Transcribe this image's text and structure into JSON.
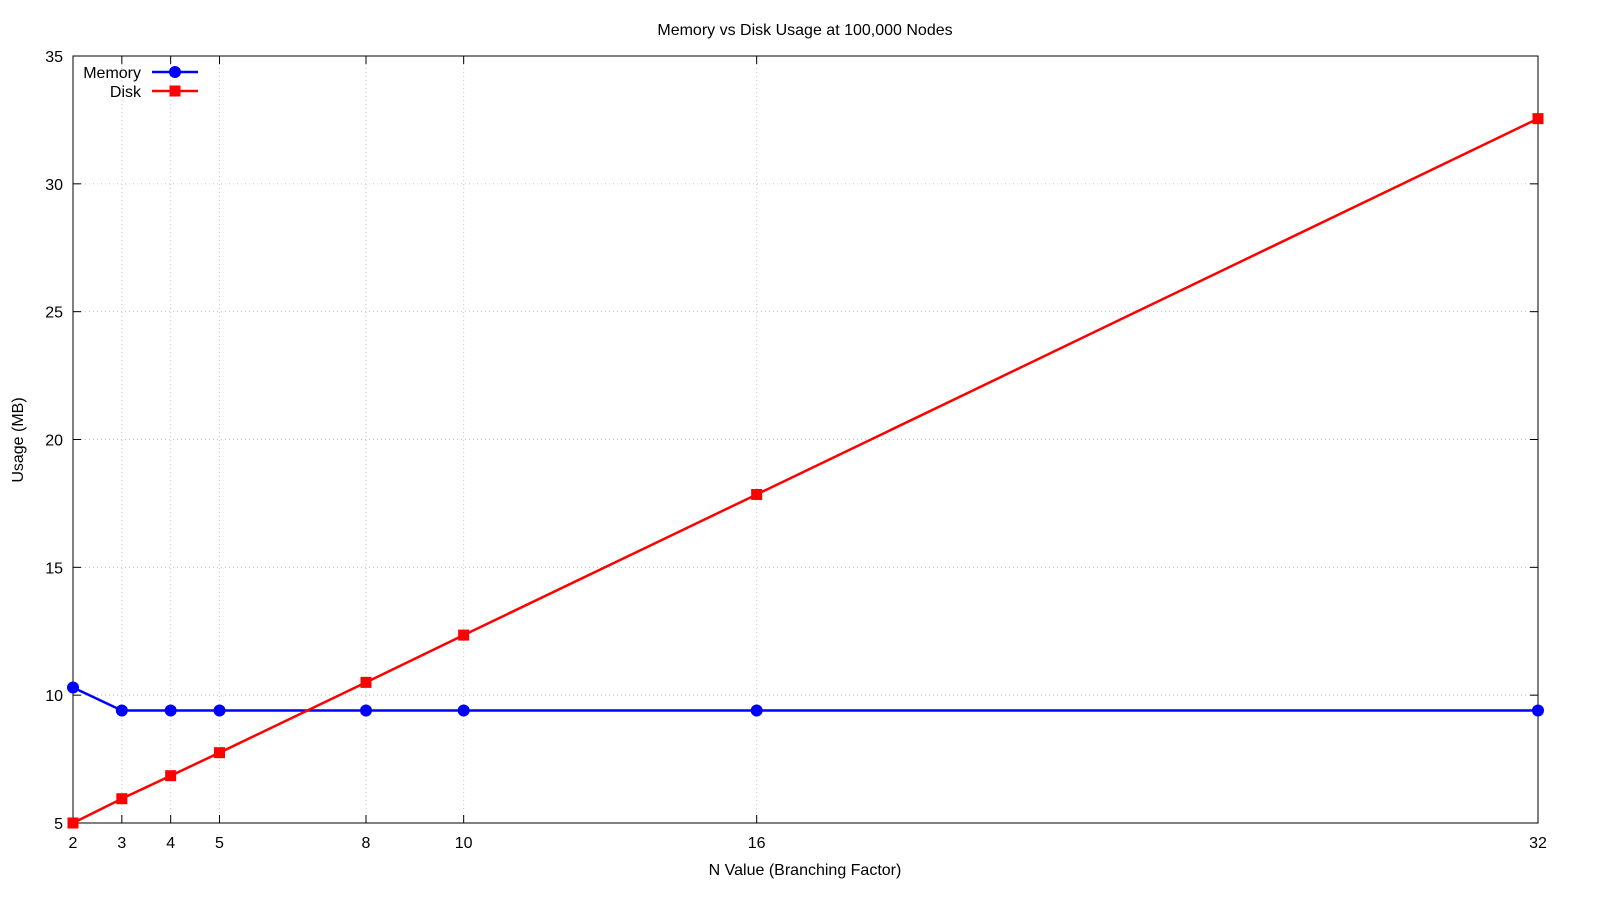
{
  "chart_data": {
    "type": "line",
    "title": "Memory vs Disk Usage at 100,000 Nodes",
    "xlabel": "N Value (Branching Factor)",
    "ylabel": "Usage (MB)",
    "x": [
      2,
      3,
      4,
      5,
      8,
      10,
      16,
      32
    ],
    "x_ticks": [
      2,
      3,
      4,
      5,
      8,
      10,
      16,
      32
    ],
    "y_ticks": [
      5,
      10,
      15,
      20,
      25,
      30,
      35
    ],
    "xlim": [
      2,
      32
    ],
    "ylim": [
      5,
      35
    ],
    "grid": true,
    "legend_position": "top-left",
    "series": [
      {
        "name": "Memory",
        "color": "#0000ff",
        "marker": "circle",
        "values": [
          10.3,
          9.4,
          9.4,
          9.4,
          9.4,
          9.4,
          9.4,
          9.4
        ]
      },
      {
        "name": "Disk",
        "color": "#ff0000",
        "marker": "square",
        "values": [
          5.0,
          5.95,
          6.85,
          7.75,
          10.5,
          12.35,
          17.85,
          32.55
        ]
      }
    ]
  }
}
